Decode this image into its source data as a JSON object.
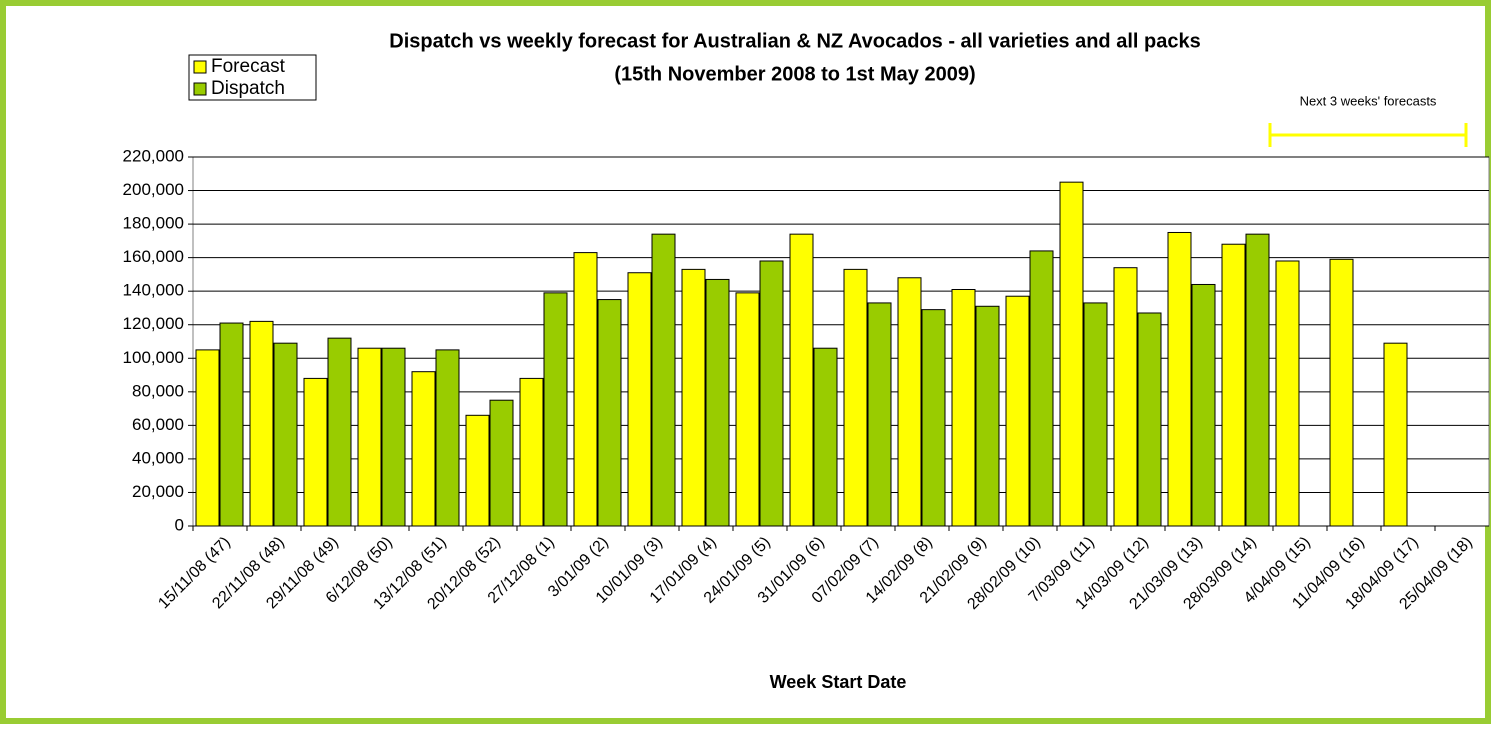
{
  "chart_data": {
    "type": "bar",
    "title": "Dispatch vs weekly forecast for Australian & NZ Avocados - all varieties and all packs",
    "subtitle": "(15th November 2008 to 1st May 2009)",
    "x_label": "Week Start Date",
    "annotation": "Next 3 weeks' forecasts",
    "categories": [
      "15/11/08 (47)",
      "22/11/08 (48)",
      "29/11/08 (49)",
      "6/12/08 (50)",
      "13/12/08 (51)",
      "20/12/08 (52)",
      "27/12/08 (1)",
      "3/01/09 (2)",
      "10/01/09 (3)",
      "17/01/09 (4)",
      "24/01/09 (5)",
      "31/01/09 (6)",
      "07/02/09 (7)",
      "14/02/09 (8)",
      "21/02/09 (9)",
      "28/02/09 (10)",
      "7/03/09 (11)",
      "14/03/09 (12)",
      "21/03/09 (13)",
      "28/03/09 (14)",
      "4/04/09 (15)",
      "11/04/09 (16)",
      "18/04/09 (17)",
      "25/04/09 (18)"
    ],
    "series": [
      {
        "name": "Forecast",
        "color": "#ffff00",
        "values": [
          105000,
          122000,
          88000,
          106000,
          92000,
          66000,
          88000,
          163000,
          151000,
          153000,
          139000,
          174000,
          153000,
          148000,
          141000,
          137000,
          205000,
          154000,
          175000,
          168000,
          158000,
          159000,
          109000,
          null
        ]
      },
      {
        "name": "Dispatch",
        "color": "#99cc00",
        "values": [
          121000,
          109000,
          112000,
          106000,
          105000,
          75000,
          139000,
          135000,
          174000,
          147000,
          158000,
          106000,
          133000,
          129000,
          131000,
          164000,
          133000,
          127000,
          144000,
          174000,
          null,
          null,
          null,
          null
        ]
      }
    ],
    "ylim": [
      0,
      220000
    ],
    "yticks": [
      0,
      {
        "value": 20000,
        "label": "20,000"
      },
      {
        "value": 40000,
        "label": "40,000"
      },
      {
        "value": 60000,
        "label": "60,000"
      },
      {
        "value": 80000,
        "label": "80,000"
      },
      {
        "value": 100000,
        "label": "100,000"
      },
      {
        "value": 120000,
        "label": "120,000"
      },
      {
        "value": 140000,
        "label": "140,000"
      },
      {
        "value": 160000,
        "label": "160,000"
      },
      {
        "value": 180000,
        "label": "180,000"
      },
      {
        "value": 200000,
        "label": "200,000"
      },
      {
        "value": 220000,
        "label": "220,000"
      }
    ],
    "grid": true,
    "legend": "top-left"
  }
}
